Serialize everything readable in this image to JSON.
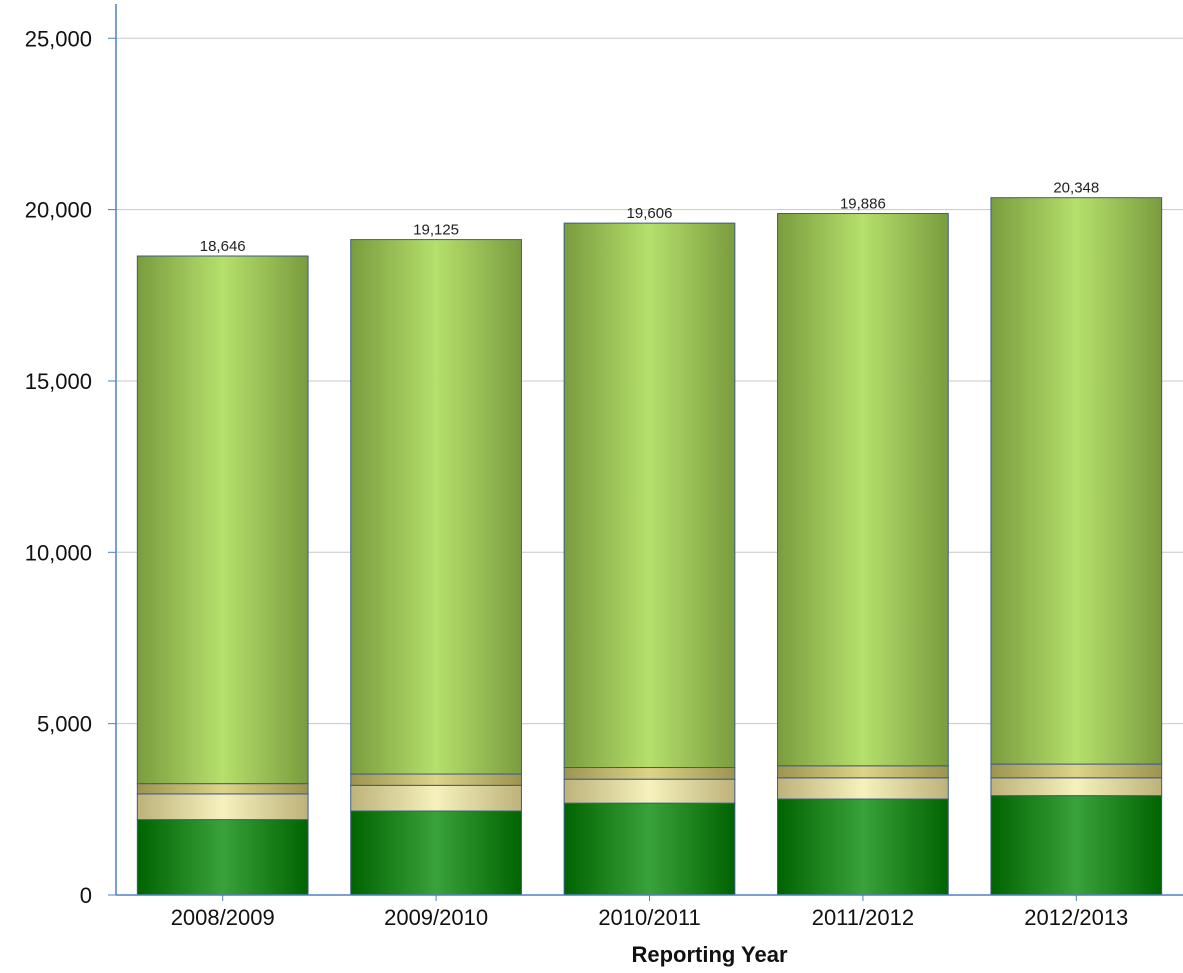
{
  "chart_data": {
    "type": "bar",
    "stacked": true,
    "title": "",
    "xlabel": "Reporting Year",
    "ylabel": "",
    "ylim": [
      0,
      26000
    ],
    "yticks": [
      0,
      5000,
      10000,
      15000,
      20000,
      25000
    ],
    "ytick_labels": [
      "0",
      "5,000",
      "10,000",
      "15,000",
      "20,000",
      "25,000"
    ],
    "grid": "horizontal",
    "categories": [
      "2008/2009",
      "2009/2010",
      "2010/2011",
      "2011/2012",
      "2012/2013"
    ],
    "totals": [
      18646,
      19125,
      19606,
      19886,
      20348
    ],
    "total_labels": [
      "18,646",
      "19,125",
      "19,606",
      "19,886",
      "20,348"
    ],
    "series": [
      {
        "values": [
          2200,
          2450,
          2680,
          2800,
          2900
        ],
        "color": "#1f8a1f"
      },
      {
        "values": [
          750,
          750,
          700,
          620,
          520
        ],
        "color": "#ece6a8"
      },
      {
        "values": [
          300,
          330,
          340,
          350,
          400
        ],
        "color": "#c9bf6a"
      },
      {
        "values": [
          15396,
          15595,
          15886,
          16116,
          16528
        ],
        "color": "#a5d35a"
      }
    ],
    "colors": {
      "axis": "#4f81bd",
      "grid": "#c8c8c8",
      "bar_outline": "#3d5a8a"
    }
  }
}
